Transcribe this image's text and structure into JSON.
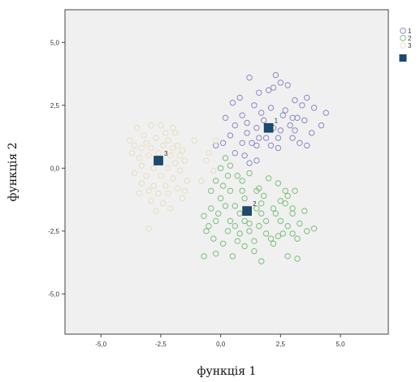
{
  "chart_data": {
    "type": "scatter",
    "title": "",
    "xlabel": "функція 1",
    "ylabel": "функція 2",
    "xlim": [
      -6.5,
      7.0
    ],
    "ylim": [
      -6.6,
      6.3
    ],
    "xticks": [
      -5.0,
      -2.5,
      0.0,
      2.5,
      5.0
    ],
    "yticks": [
      -5.0,
      -2.5,
      0.0,
      2.5,
      5.0
    ],
    "xtick_labels": [
      "-5,0",
      "-2,5",
      "0,0",
      "2,5",
      "5,0"
    ],
    "ytick_labels": [
      "-5,0",
      "-2,5",
      "0,0",
      "2,5",
      "5,0"
    ],
    "grid": false,
    "legend_position": "top-right",
    "legend": [
      {
        "label": "1",
        "color": "#8c88c8",
        "marker": "circle-open"
      },
      {
        "label": "2",
        "color": "#7cbf7a",
        "marker": "circle-open"
      },
      {
        "label": "3",
        "color": "#e8dfc0",
        "marker": "circle-open"
      },
      {
        "label": "",
        "color": "#1b4a6e",
        "marker": "square-filled"
      }
    ],
    "series": [
      {
        "name": "1",
        "color": "#8c88c8",
        "points": [
          [
            1.2,
            3.6
          ],
          [
            2.3,
            3.7
          ],
          [
            1.6,
            3.0
          ],
          [
            2.0,
            3.1
          ],
          [
            2.2,
            3.2
          ],
          [
            2.5,
            3.4
          ],
          [
            2.8,
            3.3
          ],
          [
            3.1,
            2.7
          ],
          [
            0.8,
            2.8
          ],
          [
            0.5,
            2.6
          ],
          [
            1.4,
            2.5
          ],
          [
            2.1,
            2.4
          ],
          [
            2.7,
            2.3
          ],
          [
            3.4,
            2.5
          ],
          [
            3.6,
            2.8
          ],
          [
            3.9,
            2.4
          ],
          [
            4.4,
            2.2
          ],
          [
            3.2,
            2.0
          ],
          [
            3.5,
            1.9
          ],
          [
            3.0,
            2.0
          ],
          [
            2.9,
            1.7
          ],
          [
            0.9,
            2.1
          ],
          [
            0.6,
            1.7
          ],
          [
            1.1,
            1.8
          ],
          [
            1.5,
            1.6
          ],
          [
            1.8,
            1.9
          ],
          [
            2.2,
            1.6
          ],
          [
            2.5,
            1.5
          ],
          [
            3.1,
            1.5
          ],
          [
            3.8,
            1.4
          ],
          [
            4.2,
            1.7
          ],
          [
            2.4,
            1.2
          ],
          [
            1.6,
            1.2
          ],
          [
            1.3,
            1.0
          ],
          [
            0.9,
            1.0
          ],
          [
            0.4,
            1.3
          ],
          [
            0.1,
            1.0
          ],
          [
            -0.2,
            0.9
          ],
          [
            0.6,
            0.6
          ],
          [
            1.5,
            0.9
          ],
          [
            2.1,
            0.9
          ],
          [
            2.4,
            0.8
          ],
          [
            3.3,
            1.0
          ],
          [
            3.6,
            0.9
          ],
          [
            3.0,
            1.2
          ],
          [
            1.2,
            0.2
          ],
          [
            1.0,
            0.5
          ],
          [
            1.5,
            0.3
          ],
          [
            0.2,
            2.0
          ],
          [
            1.7,
            2.2
          ],
          [
            2.6,
            2.1
          ],
          [
            1.9,
            1.2
          ],
          [
            1.1,
            1.4
          ]
        ]
      },
      {
        "name": "2",
        "color": "#7cbf7a",
        "points": [
          [
            0.2,
            0.4
          ],
          [
            0.4,
            0.1
          ],
          [
            0.7,
            -0.3
          ],
          [
            1.2,
            -0.2
          ],
          [
            2.0,
            -0.4
          ],
          [
            2.4,
            -0.6
          ],
          [
            1.6,
            -0.8
          ],
          [
            0.9,
            -0.9
          ],
          [
            -0.4,
            -0.9
          ],
          [
            -0.2,
            -0.5
          ],
          [
            0.1,
            -0.7
          ],
          [
            0.4,
            -0.9
          ],
          [
            1.5,
            -0.9
          ],
          [
            2.7,
            -0.9
          ],
          [
            2.8,
            -1.1
          ],
          [
            1.8,
            -1.1
          ],
          [
            1.0,
            -1.2
          ],
          [
            0.0,
            -1.2
          ],
          [
            -0.4,
            -1.6
          ],
          [
            0.2,
            -1.5
          ],
          [
            0.6,
            -1.5
          ],
          [
            0.8,
            -1.8
          ],
          [
            1.5,
            -1.6
          ],
          [
            1.7,
            -1.8
          ],
          [
            2.2,
            -1.6
          ],
          [
            2.5,
            -1.3
          ],
          [
            3.0,
            -1.6
          ],
          [
            3.0,
            -1.8
          ],
          [
            2.3,
            -1.8
          ],
          [
            1.0,
            -2.1
          ],
          [
            0.4,
            -2.1
          ],
          [
            -0.2,
            -2.1
          ],
          [
            -0.5,
            -2.3
          ],
          [
            0.3,
            -2.5
          ],
          [
            0.6,
            -2.3
          ],
          [
            1.2,
            -2.2
          ],
          [
            1.6,
            -2.3
          ],
          [
            1.9,
            -2.1
          ],
          [
            2.5,
            -2.1
          ],
          [
            2.8,
            -2.3
          ],
          [
            3.3,
            -2.2
          ],
          [
            3.5,
            -1.7
          ],
          [
            3.0,
            -2.6
          ],
          [
            2.4,
            -2.7
          ],
          [
            1.9,
            -2.6
          ],
          [
            2.1,
            -2.8
          ],
          [
            1.4,
            -2.9
          ],
          [
            0.7,
            -2.9
          ],
          [
            0.1,
            -3.0
          ],
          [
            -0.3,
            -2.8
          ],
          [
            -0.6,
            -2.5
          ],
          [
            -0.7,
            -1.9
          ],
          [
            0.8,
            -2.6
          ],
          [
            1.0,
            -3.1
          ],
          [
            1.2,
            -2.5
          ],
          [
            2.6,
            -2.6
          ],
          [
            3.2,
            -2.8
          ],
          [
            3.6,
            -2.5
          ],
          [
            3.9,
            -2.4
          ],
          [
            -0.2,
            -3.4
          ],
          [
            0.5,
            -3.5
          ],
          [
            1.7,
            -3.7
          ],
          [
            2.8,
            -3.5
          ],
          [
            3.2,
            -3.6
          ],
          [
            -0.7,
            -3.5
          ],
          [
            2.2,
            -3.0
          ],
          [
            1.4,
            -3.3
          ],
          [
            0.9,
            -0.5
          ],
          [
            1.7,
            -1.4
          ],
          [
            2.7,
            -1.4
          ],
          [
            3.1,
            -0.9
          ],
          [
            0.0,
            0.0
          ],
          [
            0.3,
            -0.3
          ],
          [
            -0.1,
            -1.8
          ]
        ]
      },
      {
        "name": "3",
        "color": "#e8dfc0",
        "points": [
          [
            -3.5,
            1.6
          ],
          [
            -2.9,
            1.7
          ],
          [
            -2.5,
            1.7
          ],
          [
            -2.0,
            1.6
          ],
          [
            -3.2,
            1.3
          ],
          [
            -2.7,
            1.2
          ],
          [
            -2.2,
            1.1
          ],
          [
            -1.9,
            1.4
          ],
          [
            -3.6,
            0.9
          ],
          [
            -3.3,
            0.8
          ],
          [
            -2.9,
            0.8
          ],
          [
            -2.4,
            0.9
          ],
          [
            -1.8,
            0.9
          ],
          [
            -1.6,
            0.7
          ],
          [
            -3.7,
            0.6
          ],
          [
            -3.4,
            0.4
          ],
          [
            -3.0,
            0.5
          ],
          [
            -2.6,
            0.6
          ],
          [
            -2.1,
            0.5
          ],
          [
            -1.5,
            0.3
          ],
          [
            -1.9,
            0.2
          ],
          [
            -3.3,
            0.1
          ],
          [
            -2.8,
            0.0
          ],
          [
            -2.2,
            0.0
          ],
          [
            -1.7,
            -0.1
          ],
          [
            -3.6,
            -0.2
          ],
          [
            -3.1,
            -0.3
          ],
          [
            -2.5,
            -0.3
          ],
          [
            -2.0,
            -0.4
          ],
          [
            -1.4,
            -0.5
          ],
          [
            -3.3,
            -0.6
          ],
          [
            -2.8,
            -0.7
          ],
          [
            -2.3,
            -0.7
          ],
          [
            -1.8,
            -0.8
          ],
          [
            -3.0,
            -0.9
          ],
          [
            -2.6,
            -1.0
          ],
          [
            -2.2,
            -1.0
          ],
          [
            -3.4,
            -1.0
          ],
          [
            -1.6,
            -1.2
          ],
          [
            -2.9,
            -1.3
          ],
          [
            -2.4,
            -1.4
          ],
          [
            -2.1,
            -1.6
          ],
          [
            -2.7,
            -1.7
          ],
          [
            -3.0,
            -2.4
          ],
          [
            -1.7,
            0.5
          ],
          [
            -1.5,
            -0.9
          ],
          [
            -3.8,
            1.1
          ],
          [
            -2.3,
            1.4
          ],
          [
            -0.6,
            0.3
          ],
          [
            -0.3,
            -0.1
          ],
          [
            -0.8,
            -0.5
          ],
          [
            -0.5,
            0.6
          ],
          [
            -1.1,
            1.1
          ],
          [
            -0.2,
            1.1
          ],
          [
            -3.1,
            1.0
          ],
          [
            -2.0,
            0.8
          ]
        ]
      }
    ],
    "centroids": [
      {
        "label": "1",
        "x": 2.0,
        "y": 1.6,
        "color": "#1b4a6e"
      },
      {
        "label": "2",
        "x": 1.1,
        "y": -1.7,
        "color": "#1b4a6e"
      },
      {
        "label": "3",
        "x": -2.6,
        "y": 0.3,
        "color": "#1b4a6e"
      }
    ],
    "plot_background": "#f0f0f0"
  }
}
